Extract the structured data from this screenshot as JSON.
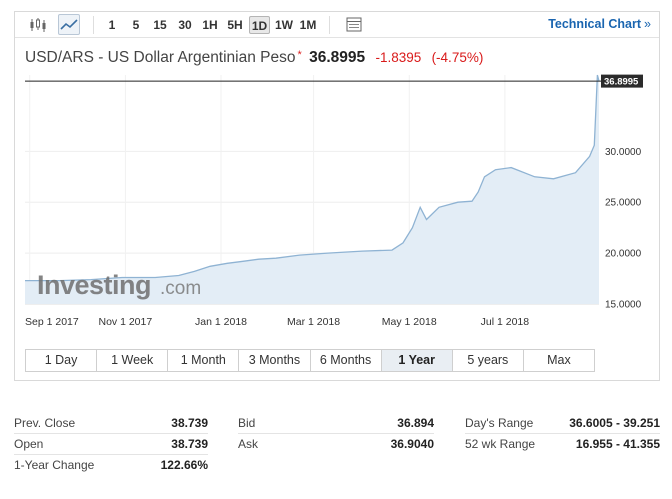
{
  "toolbar": {
    "icons": [
      "candlestick-icon",
      "line-chart-icon"
    ],
    "timeframes": [
      "1",
      "5",
      "15",
      "30",
      "1H",
      "5H",
      "1D",
      "1W",
      "1M"
    ],
    "active_timeframe": "1D",
    "technical_link": "Technical Chart",
    "technical_arrow": "»"
  },
  "quote": {
    "name": "USD/ARS - US Dollar Argentinian Peso",
    "star": "*",
    "price": "36.8995",
    "change": "-1.8395",
    "change_pct": "(-4.75%)",
    "price_tag": "36.8995"
  },
  "watermark": {
    "main": "Investing",
    "suffix": ".com"
  },
  "colors": {
    "accent_blue": "#1a65b0",
    "negative": "#d91a1a",
    "line": "#8fb3d3",
    "area": "#e3edf6"
  },
  "chart_data": {
    "type": "area",
    "x_labels": [
      "Sep 1 2017",
      "Nov 1 2017",
      "Jan 1 2018",
      "Mar 1 2018",
      "May 1 2018",
      "Jul 1 2018"
    ],
    "y_ticks": [
      "30.0000",
      "25.0000",
      "20.0000",
      "15.0000"
    ],
    "ylim": [
      15,
      37.5
    ],
    "last_value": 36.8995,
    "grid": true,
    "x": [
      "2017-08-29",
      "2017-09-20",
      "2017-10-10",
      "2017-10-30",
      "2017-11-20",
      "2017-12-05",
      "2017-12-15",
      "2017-12-25",
      "2018-01-05",
      "2018-01-15",
      "2018-01-25",
      "2018-02-05",
      "2018-02-20",
      "2018-03-10",
      "2018-04-01",
      "2018-04-20",
      "2018-04-27",
      "2018-05-03",
      "2018-05-08",
      "2018-05-12",
      "2018-05-20",
      "2018-06-01",
      "2018-06-10",
      "2018-06-14",
      "2018-06-18",
      "2018-06-25",
      "2018-07-05",
      "2018-07-20",
      "2018-08-01",
      "2018-08-15",
      "2018-08-24",
      "2018-08-27",
      "2018-08-29",
      "2018-08-30"
    ],
    "y": [
      17.3,
      17.3,
      17.4,
      17.6,
      17.6,
      17.8,
      18.2,
      18.7,
      19.0,
      19.2,
      19.4,
      19.5,
      19.8,
      20.0,
      20.2,
      20.3,
      21.0,
      22.5,
      24.5,
      23.3,
      24.5,
      25.0,
      25.1,
      26.0,
      27.5,
      28.2,
      28.4,
      27.5,
      27.3,
      27.9,
      29.5,
      30.6,
      37.5,
      36.9
    ]
  },
  "ranges": {
    "items": [
      "1 Day",
      "1 Week",
      "1 Month",
      "3 Months",
      "6 Months",
      "1 Year",
      "5 years",
      "Max"
    ],
    "active": "1 Year"
  },
  "stats": {
    "prev_close_label": "Prev. Close",
    "prev_close_value": "38.739",
    "open_label": "Open",
    "open_value": "38.739",
    "year_change_label": "1-Year Change",
    "year_change_value": "122.66%",
    "bid_label": "Bid",
    "bid_value": "36.894",
    "ask_label": "Ask",
    "ask_value": "36.9040",
    "days_range_label": "Day's Range",
    "days_range_value": "36.6005 - 39.251",
    "wk52_range_label": "52 wk Range",
    "wk52_range_value": "16.955 - 41.355"
  }
}
